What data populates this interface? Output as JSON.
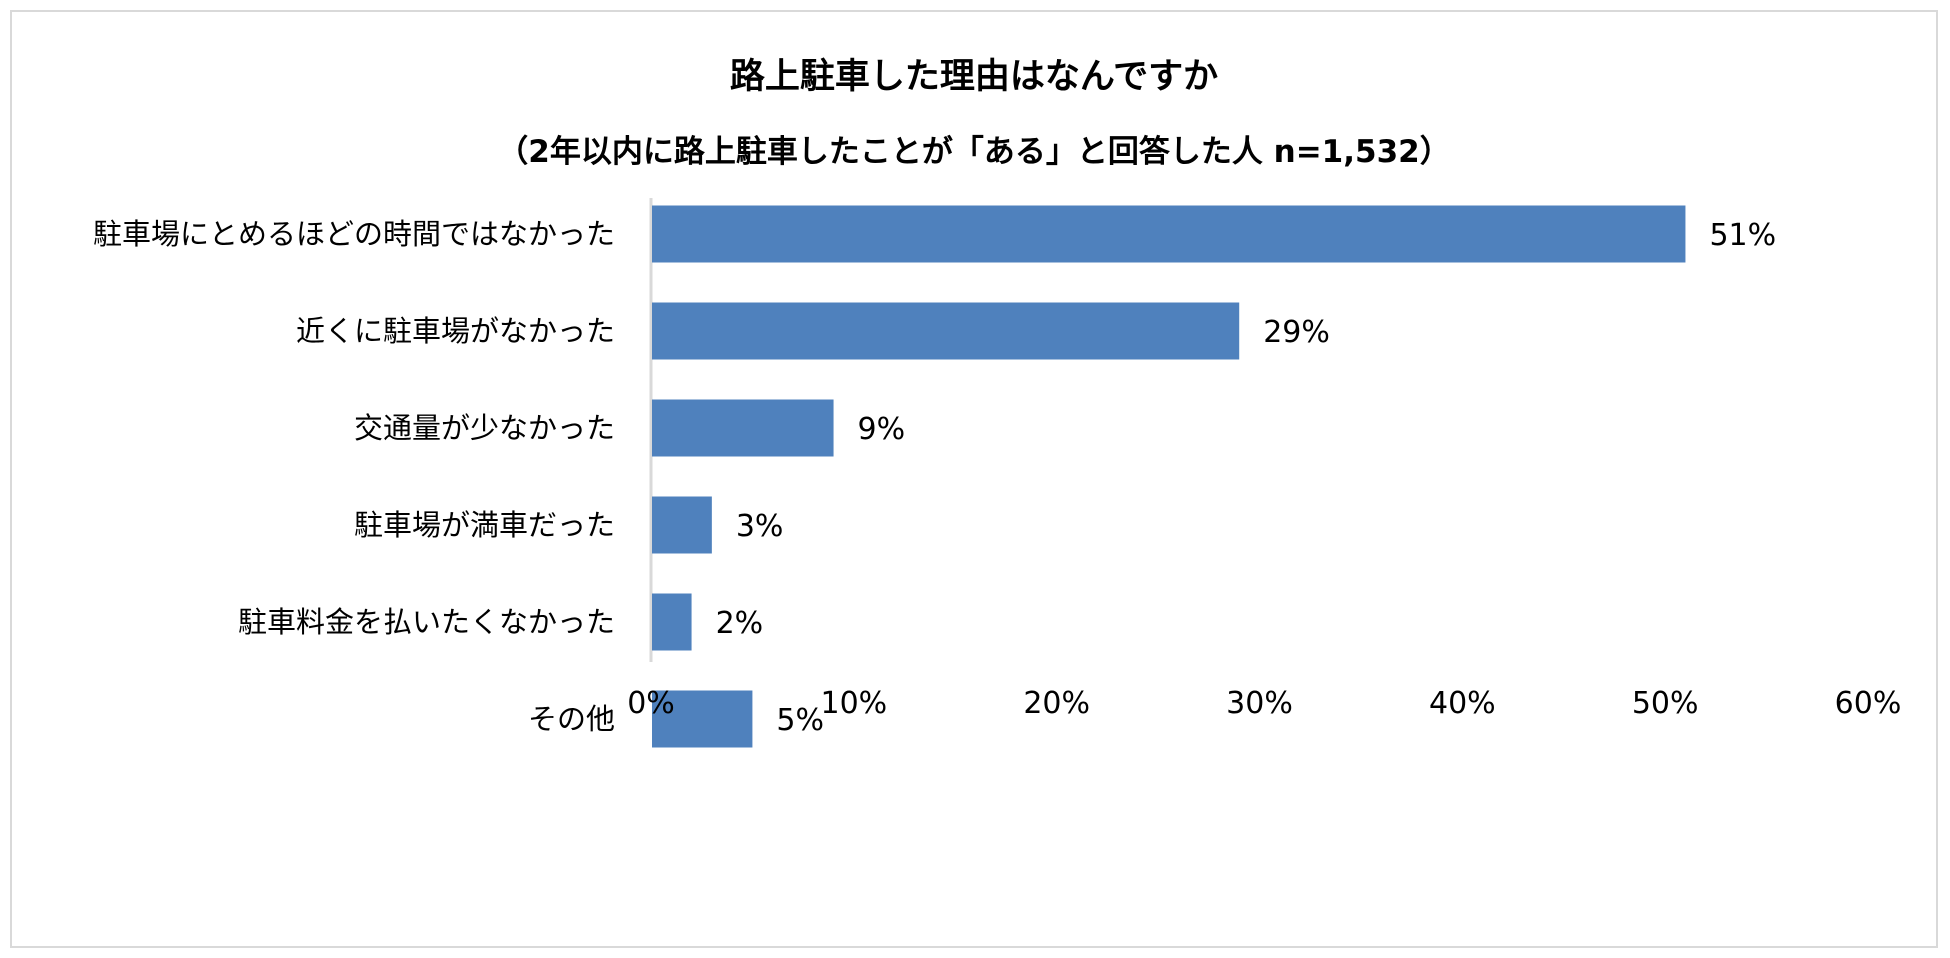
{
  "chart_data": {
    "type": "bar",
    "orientation": "horizontal",
    "title": "路上駐車した理由はなんですか",
    "subtitle": "（2年以内に路上駐車したことが「ある」と回答した人 n=1,532）",
    "categories": [
      "駐車場にとめるほどの時間ではなかった",
      "近くに駐車場がなかった",
      "交通量が少なかった",
      "駐車場が満車だった",
      "駐車料金を払いたくなかった",
      "その他"
    ],
    "values": [
      51,
      29,
      9,
      3,
      2,
      5
    ],
    "value_labels": [
      "51%",
      "29%",
      "9%",
      "3%",
      "2%",
      "5%"
    ],
    "xlim": [
      0,
      60
    ],
    "x_ticks": [
      0,
      10,
      20,
      30,
      40,
      50,
      60
    ],
    "x_tick_labels": [
      "0%",
      "10%",
      "20%",
      "30%",
      "40%",
      "50%",
      "60%"
    ],
    "xlabel": "",
    "ylabel": "",
    "grid": false,
    "legend": "none",
    "colors": {
      "bar": "#4f81bd",
      "axis": "#d9d9d9",
      "border": "#d9d9d9",
      "text": "#000000"
    }
  }
}
